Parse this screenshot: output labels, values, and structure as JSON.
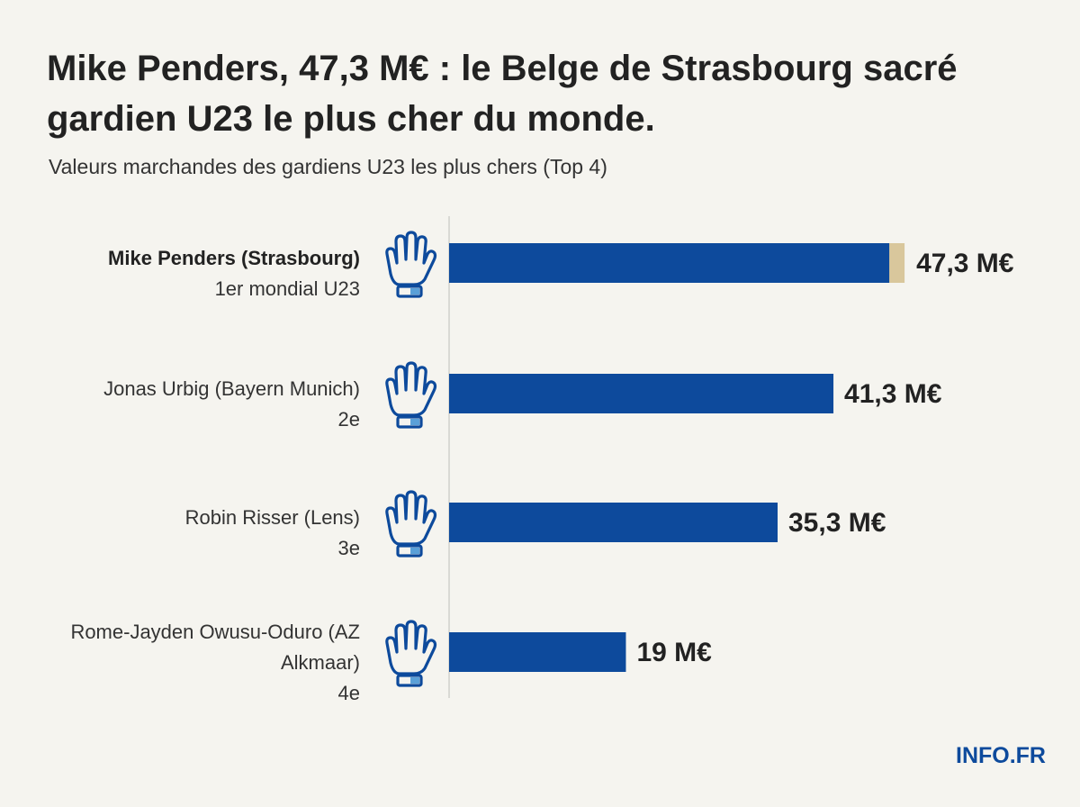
{
  "chart_data": {
    "type": "bar",
    "orientation": "horizontal",
    "title": "Mike Penders, 47,3 M€ : le Belge de Strasbourg sacré gardien U23 le plus cher du monde.",
    "subtitle": "Valeurs marchandes des gardiens U23 les plus chers (Top 4)",
    "categories": [
      "Mike Penders (Strasbourg)",
      "Jonas Urbig (Bayern Munich)",
      "Robin Risser (Lens)",
      "Rome-Jayden Owusu-Oduro (AZ Alkmaar)"
    ],
    "ranks": [
      "1er mondial U23",
      "2e",
      "3e",
      "4e"
    ],
    "values": [
      47.3,
      41.3,
      35.3,
      19
    ],
    "value_labels": [
      "47,3 M€",
      "41,3 M€",
      "35,3 M€",
      "19 M€"
    ],
    "color": "#0d4a9c",
    "xlim": [
      0,
      50
    ],
    "logo": "INFO.FR"
  }
}
